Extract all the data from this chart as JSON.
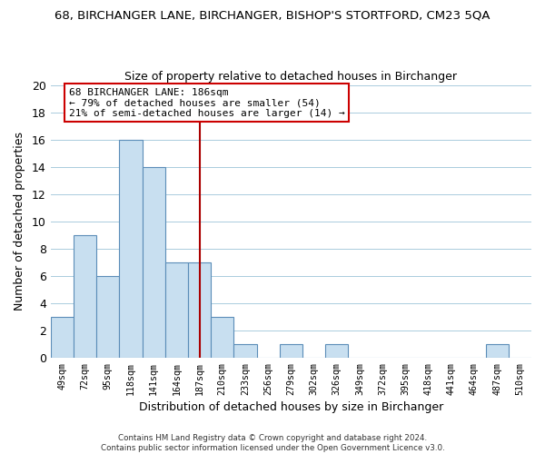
{
  "title": "68, BIRCHANGER LANE, BIRCHANGER, BISHOP'S STORTFORD, CM23 5QA",
  "subtitle": "Size of property relative to detached houses in Birchanger",
  "xlabel": "Distribution of detached houses by size in Birchanger",
  "ylabel": "Number of detached properties",
  "bar_color": "#c8dff0",
  "bar_edge_color": "#5b8db8",
  "categories": [
    "49sqm",
    "72sqm",
    "95sqm",
    "118sqm",
    "141sqm",
    "164sqm",
    "187sqm",
    "210sqm",
    "233sqm",
    "256sqm",
    "279sqm",
    "302sqm",
    "326sqm",
    "349sqm",
    "372sqm",
    "395sqm",
    "418sqm",
    "441sqm",
    "464sqm",
    "487sqm",
    "510sqm"
  ],
  "values": [
    3,
    9,
    6,
    16,
    14,
    7,
    7,
    3,
    1,
    0,
    1,
    0,
    1,
    0,
    0,
    0,
    0,
    0,
    0,
    1,
    0
  ],
  "ylim": [
    0,
    20
  ],
  "yticks": [
    0,
    2,
    4,
    6,
    8,
    10,
    12,
    14,
    16,
    18,
    20
  ],
  "vline_index": 6,
  "vline_color": "#aa0000",
  "annotation_line1": "68 BIRCHANGER LANE: 186sqm",
  "annotation_line2": "← 79% of detached houses are smaller (54)",
  "annotation_line3": "21% of semi-detached houses are larger (14) →",
  "footer_line1": "Contains HM Land Registry data © Crown copyright and database right 2024.",
  "footer_line2": "Contains public sector information licensed under the Open Government Licence v3.0.",
  "bg_color": "#ffffff",
  "grid_color": "#aaccdd"
}
